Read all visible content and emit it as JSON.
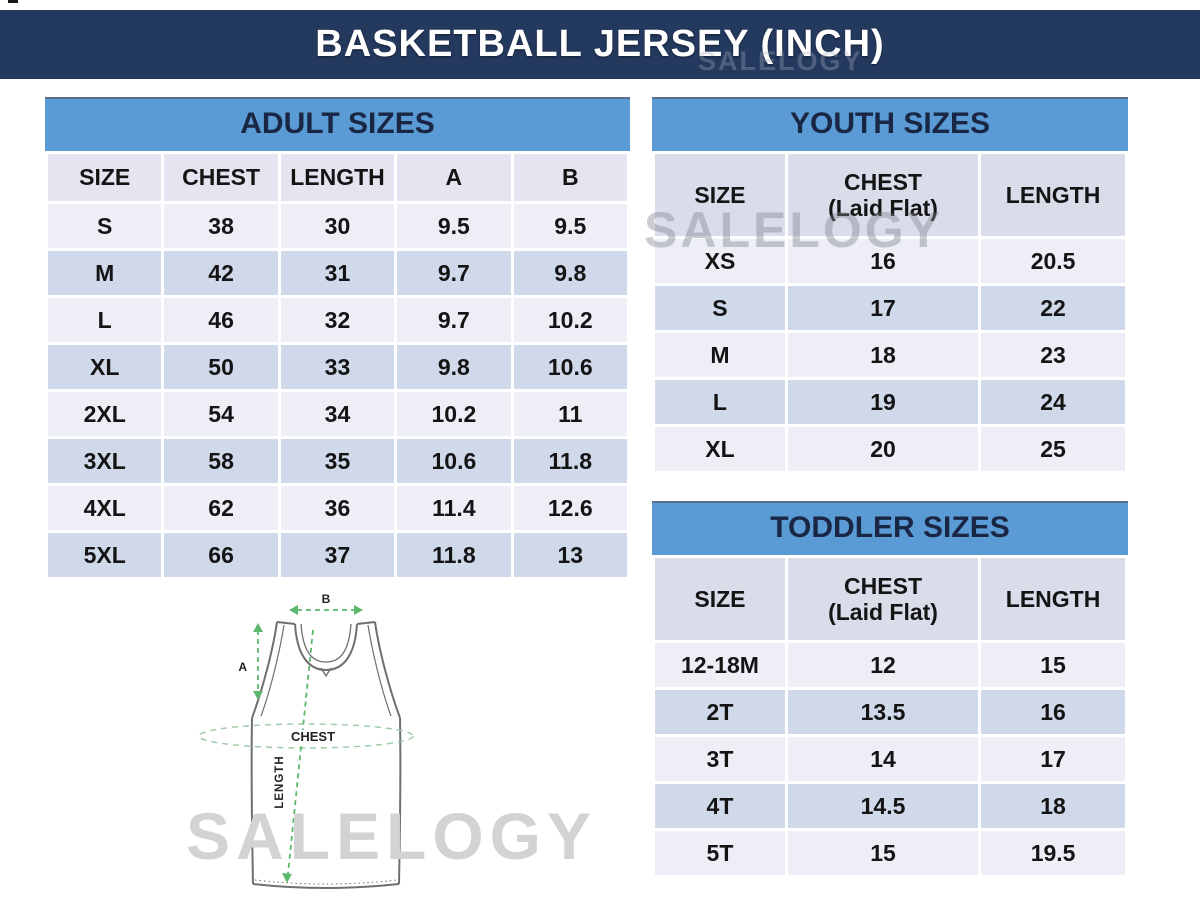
{
  "page": {
    "title": "BASKETBALL JERSEY (INCH)",
    "watermark": "SALELOGY",
    "unit": "INCH"
  },
  "colors": {
    "navy_bar": "#24395E",
    "table_title_bg": "#5B9BD5",
    "table_title_text": "#1A2744",
    "header_row_adult": "#E4E5F0",
    "header_row_youth_toddler": "#D9DDEA",
    "row_light": "#EDEEF6",
    "row_dark": "#CFD9EA",
    "arrow_green": "#5CB86C",
    "jersey_line": "#6F6F6F",
    "watermark_gray": "#D3D3D3"
  },
  "tables": {
    "adult": {
      "title": "ADULT SIZES",
      "columns": [
        "SIZE",
        "CHEST",
        "LENGTH",
        "A",
        "B"
      ],
      "rows": [
        [
          "S",
          "38",
          "30",
          "9.5",
          "9.5"
        ],
        [
          "M",
          "42",
          "31",
          "9.7",
          "9.8"
        ],
        [
          "L",
          "46",
          "32",
          "9.7",
          "10.2"
        ],
        [
          "XL",
          "50",
          "33",
          "9.8",
          "10.6"
        ],
        [
          "2XL",
          "54",
          "34",
          "10.2",
          "11"
        ],
        [
          "3XL",
          "58",
          "35",
          "10.6",
          "11.8"
        ],
        [
          "4XL",
          "62",
          "36",
          "11.4",
          "12.6"
        ],
        [
          "5XL",
          "66",
          "37",
          "11.8",
          "13"
        ]
      ]
    },
    "youth": {
      "title": "YOUTH SIZES",
      "columns": [
        "SIZE",
        "CHEST\n(Laid Flat)",
        "LENGTH"
      ],
      "rows": [
        [
          "XS",
          "16",
          "20.5"
        ],
        [
          "S",
          "17",
          "22"
        ],
        [
          "M",
          "18",
          "23"
        ],
        [
          "L",
          "19",
          "24"
        ],
        [
          "XL",
          "20",
          "25"
        ]
      ]
    },
    "toddler": {
      "title": "TODDLER SIZES",
      "columns": [
        "SIZE",
        "CHEST\n(Laid Flat)",
        "LENGTH"
      ],
      "rows": [
        [
          "12-18M",
          "12",
          "15"
        ],
        [
          "2T",
          "13.5",
          "16"
        ],
        [
          "3T",
          "14",
          "17"
        ],
        [
          "4T",
          "14.5",
          "18"
        ],
        [
          "5T",
          "15",
          "19.5"
        ]
      ]
    }
  },
  "diagram": {
    "a_label": "A",
    "b_label": "B",
    "chest_label": "CHEST",
    "length_label": "LENGTH"
  }
}
